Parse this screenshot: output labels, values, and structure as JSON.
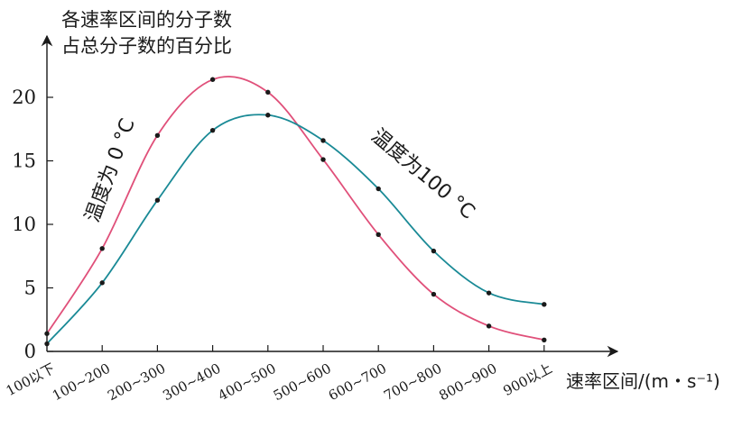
{
  "chart_data": {
    "type": "line",
    "ylabel_lines": [
      "各速率区间的分子数",
      "占总分子数的百分比"
    ],
    "xlabel": "速率区间/(m・s⁻¹)",
    "categories": [
      "100以下",
      "100~200",
      "200~300",
      "300~400",
      "400~500",
      "500~600",
      "600~700",
      "700~800",
      "800~900",
      "900以上"
    ],
    "yticks": [
      0,
      5,
      10,
      15,
      20
    ],
    "ylim": [
      0,
      24
    ],
    "series": [
      {
        "name": "温度为 0 °C",
        "color": "#e0507a",
        "values": [
          1.4,
          8.1,
          17.0,
          21.4,
          20.4,
          15.1,
          9.2,
          4.5,
          2.0,
          0.9
        ]
      },
      {
        "name": "温度为100 °C",
        "color": "#1a8a96",
        "values": [
          0.6,
          5.4,
          11.9,
          17.4,
          18.6,
          16.6,
          12.8,
          7.9,
          4.6,
          3.7
        ]
      }
    ]
  }
}
